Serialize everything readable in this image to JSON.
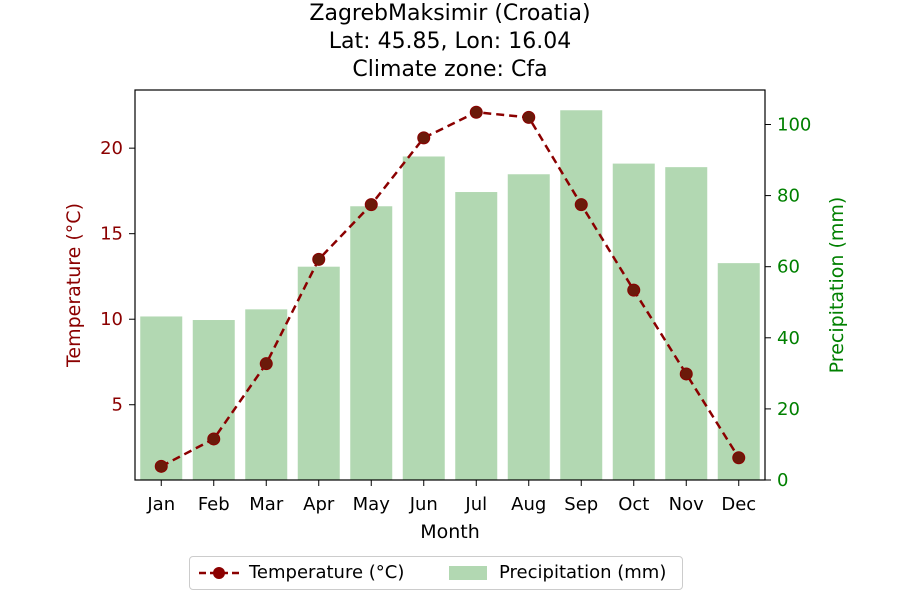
{
  "chart_data": {
    "type": "bar+line",
    "title_lines": [
      "ZagrebMaksimir (Croatia)",
      "Lat: 45.85, Lon: 16.04",
      "Climate zone: Cfa"
    ],
    "categories": [
      "Jan",
      "Feb",
      "Mar",
      "Apr",
      "May",
      "Jun",
      "Jul",
      "Aug",
      "Sep",
      "Oct",
      "Nov",
      "Dec"
    ],
    "xlabel": "Month",
    "ylabel_left": "Temperature (°C)",
    "ylabel_right": "Precipitation (mm)",
    "ylim_left": [
      0.6,
      23.4
    ],
    "ylim_right": [
      0,
      109.7
    ],
    "yticks_left": [
      5,
      10,
      15,
      20
    ],
    "yticks_right": [
      0,
      20,
      40,
      60,
      80,
      100
    ],
    "series": [
      {
        "name": "Temperature (°C)",
        "kind": "line",
        "axis": "left",
        "color": "#8b0000",
        "marker_color": "#6b1a0a",
        "line_style": "dashed",
        "values": [
          1.4,
          3.0,
          7.4,
          13.5,
          16.7,
          20.6,
          22.1,
          21.8,
          16.7,
          11.7,
          6.8,
          1.9
        ]
      },
      {
        "name": "Precipitation (mm)",
        "kind": "bar",
        "axis": "right",
        "color": "#b2d8b2",
        "values": [
          46,
          45,
          48,
          60,
          77,
          91,
          81,
          86,
          104,
          89,
          88,
          61
        ]
      }
    ],
    "left_axis_color": "#8b0000",
    "right_axis_color": "#008000",
    "legend_position": "bottom-center"
  }
}
